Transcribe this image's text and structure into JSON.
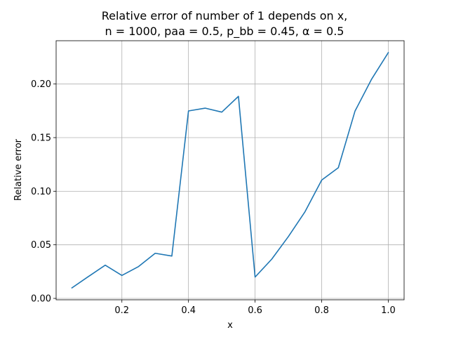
{
  "chart_data": {
    "type": "line",
    "title_lines": [
      "Relative error of number of 1 depends on x,",
      "n = 1000, paa = 0.5, p_bb = 0.45, α = 0.5"
    ],
    "xlabel": "x",
    "ylabel": "Relative error",
    "xlim": [
      0.0025,
      1.0475
    ],
    "ylim": [
      -0.0013,
      0.2404
    ],
    "xticks": [
      0.2,
      0.4,
      0.6,
      0.8,
      1.0
    ],
    "xtick_labels": [
      "0.2",
      "0.4",
      "0.6",
      "0.8",
      "1.0"
    ],
    "yticks": [
      0.0,
      0.05,
      0.1,
      0.15,
      0.2
    ],
    "ytick_labels": [
      "0.00",
      "0.05",
      "0.10",
      "0.15",
      "0.20"
    ],
    "grid": true,
    "series": [
      {
        "color": "#1f77b4",
        "x": [
          0.05,
          0.1,
          0.15,
          0.2,
          0.25,
          0.3,
          0.35,
          0.4,
          0.45,
          0.5,
          0.55,
          0.6,
          0.65,
          0.7,
          0.75,
          0.8,
          0.85,
          0.9,
          0.95,
          1.0
        ],
        "y": [
          0.0098,
          0.0205,
          0.031,
          0.0214,
          0.0297,
          0.0421,
          0.0395,
          0.1749,
          0.1775,
          0.1738,
          0.1885,
          0.0199,
          0.0366,
          0.0577,
          0.0809,
          0.1104,
          0.1219,
          0.1747,
          0.2046,
          0.2293
        ]
      }
    ]
  }
}
